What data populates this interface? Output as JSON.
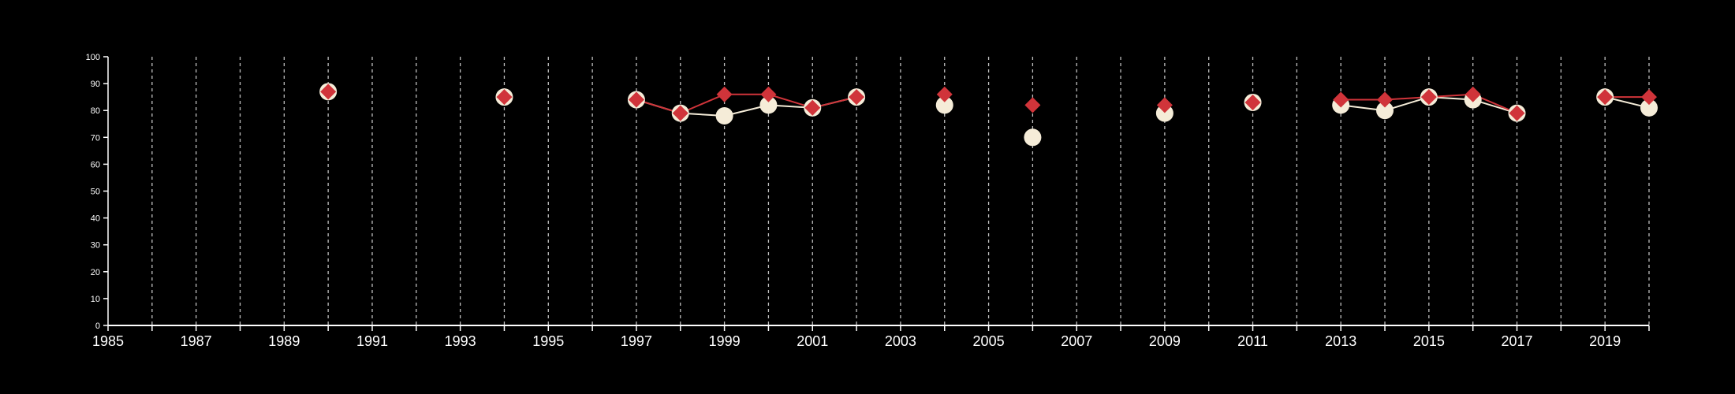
{
  "chart_data": {
    "type": "line",
    "title": "",
    "xlabel": "",
    "ylabel": "",
    "xlim": [
      1985,
      2020
    ],
    "ylim": [
      0,
      100
    ],
    "x_ticks": [
      1985,
      1987,
      1989,
      1991,
      1993,
      1995,
      1997,
      1999,
      2001,
      2003,
      2005,
      2007,
      2009,
      2011,
      2013,
      2015,
      2017,
      2019
    ],
    "y_ticks": [
      0,
      10,
      20,
      30,
      40,
      50,
      60,
      70,
      80,
      90,
      100
    ],
    "grid": "vertical dashed, every year",
    "legend": "none",
    "series": [
      {
        "marker": "circle",
        "color": "#f5ecd8",
        "points": [
          {
            "x": 1990,
            "y": 87
          },
          {
            "x": 1994,
            "y": 85
          },
          {
            "x": 1997,
            "y": 84
          },
          {
            "x": 1998,
            "y": 79
          },
          {
            "x": 1999,
            "y": 78
          },
          {
            "x": 2000,
            "y": 82
          },
          {
            "x": 2001,
            "y": 81
          },
          {
            "x": 2002,
            "y": 85
          },
          {
            "x": 2004,
            "y": 82
          },
          {
            "x": 2006,
            "y": 70
          },
          {
            "x": 2009,
            "y": 79
          },
          {
            "x": 2011,
            "y": 83
          },
          {
            "x": 2013,
            "y": 82
          },
          {
            "x": 2014,
            "y": 80
          },
          {
            "x": 2015,
            "y": 85
          },
          {
            "x": 2016,
            "y": 84
          },
          {
            "x": 2017,
            "y": 79
          },
          {
            "x": 2019,
            "y": 85
          },
          {
            "x": 2020,
            "y": 81
          }
        ]
      },
      {
        "marker": "diamond",
        "color": "#d0343a",
        "points": [
          {
            "x": 1990,
            "y": 87
          },
          {
            "x": 1994,
            "y": 85
          },
          {
            "x": 1997,
            "y": 84
          },
          {
            "x": 1998,
            "y": 79
          },
          {
            "x": 1999,
            "y": 86
          },
          {
            "x": 2000,
            "y": 86
          },
          {
            "x": 2001,
            "y": 81
          },
          {
            "x": 2002,
            "y": 85
          },
          {
            "x": 2004,
            "y": 86
          },
          {
            "x": 2006,
            "y": 82
          },
          {
            "x": 2009,
            "y": 82
          },
          {
            "x": 2011,
            "y": 83
          },
          {
            "x": 2013,
            "y": 84
          },
          {
            "x": 2014,
            "y": 84
          },
          {
            "x": 2015,
            "y": 85
          },
          {
            "x": 2016,
            "y": 86
          },
          {
            "x": 2017,
            "y": 79
          },
          {
            "x": 2019,
            "y": 85
          },
          {
            "x": 2020,
            "y": 85
          }
        ]
      }
    ],
    "colors": {
      "background": "#000000",
      "axis": "#ffffff",
      "grid": "#bfbfbf"
    }
  }
}
